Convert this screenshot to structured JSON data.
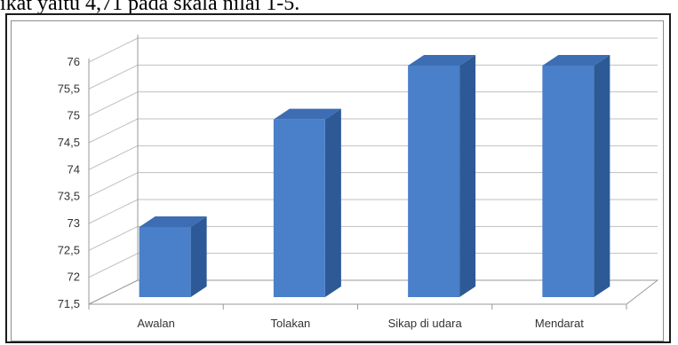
{
  "top_text": "ikat yaitu 4,71 pada skala nilai 1-5.",
  "chart_data": {
    "type": "bar",
    "categories": [
      "Awalan",
      "Tolakan",
      "Sikap di udara",
      "Mendarat"
    ],
    "values": [
      73,
      75,
      76,
      76
    ],
    "yticks": [
      "71,5",
      "72",
      "72,5",
      "73",
      "73,5",
      "74",
      "74,5",
      "75",
      "75,5",
      "76"
    ],
    "ylim": [
      71.5,
      76
    ],
    "grid": true,
    "legend": "none",
    "colors": {
      "bar_front": "#4a7fc9",
      "bar_side": "#2d5a96",
      "bar_top": "#3d6db3",
      "grid": "#bfbfbf"
    }
  }
}
